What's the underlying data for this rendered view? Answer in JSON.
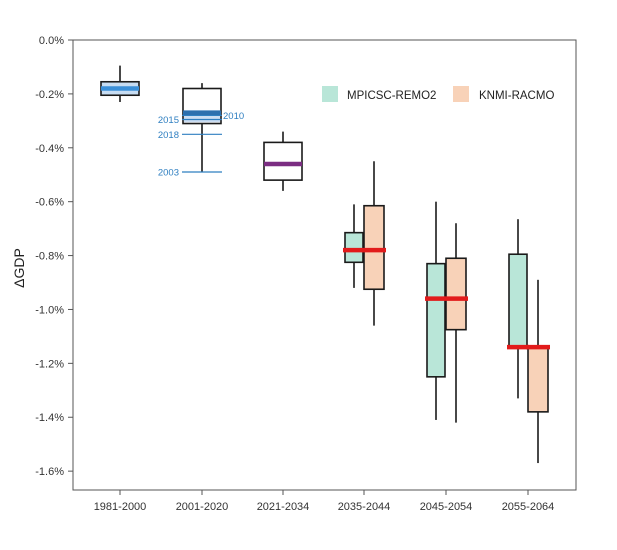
{
  "chart_data": {
    "type": "box",
    "title": "",
    "xlabel": "",
    "ylabel": "ΔGDP",
    "y_unit": "%",
    "ylim": [
      -1.67,
      0.0
    ],
    "yticks": [
      0.0,
      -0.2,
      -0.4,
      -0.6,
      -0.8,
      -1.0,
      -1.2,
      -1.4,
      -1.6
    ],
    "ytick_labels": [
      "0.0%",
      "-0.2%",
      "-0.4%",
      "-0.6%",
      "-0.8%",
      "-1.0%",
      "-1.2%",
      "-1.4%",
      "-1.6%"
    ],
    "categories": [
      "1981-2000",
      "2001-2020",
      "2021-2034",
      "2035-2044",
      "2045-2054",
      "2055-2064"
    ],
    "legend": {
      "position": "top-right",
      "entries": [
        {
          "name": "MPICSC-REMO2",
          "color": "#b9e6d8"
        },
        {
          "name": "KNMI-RACMO",
          "color": "#f8d2b8"
        }
      ]
    },
    "colors": {
      "outline": "#1a1a1a",
      "blue_median": "#3a8fd8",
      "blue_fill": "#a9c6ea",
      "purple_median": "#7b2d82",
      "red_median": "#e21b1b",
      "annotation": "#2f7fc1"
    },
    "boxes": [
      {
        "category": "1981-2000",
        "series": "historical",
        "fill": "#c6dcf2",
        "median_color": "#3a8fd8",
        "whisker_low": -0.23,
        "q1": -0.205,
        "median": -0.18,
        "q3": -0.155,
        "whisker_high": -0.095
      },
      {
        "category": "2001-2020",
        "series": "historical",
        "fill": "#ffffff",
        "median_color": "#2c6fae",
        "whisker_low": -0.49,
        "q1": -0.31,
        "median": -0.27,
        "q3": -0.18,
        "whisker_high": -0.16
      },
      {
        "category": "2021-2034",
        "series": "combined",
        "fill": "#ffffff",
        "median_color": "#7b2d82",
        "whisker_low": -0.56,
        "q1": -0.52,
        "median": -0.46,
        "q3": -0.38,
        "whisker_high": -0.34
      },
      {
        "category": "2035-2044",
        "series": "MPICSC-REMO2",
        "fill": "#b9e6d8",
        "median_color": "#e21b1b",
        "whisker_low": -0.92,
        "q1": -0.825,
        "median": -0.78,
        "q3": -0.715,
        "whisker_high": -0.61
      },
      {
        "category": "2035-2044",
        "series": "KNMI-RACMO",
        "fill": "#f8d2b8",
        "median_color": "#e21b1b",
        "whisker_low": -1.06,
        "q1": -0.925,
        "median": -0.78,
        "q3": -0.615,
        "whisker_high": -0.45
      },
      {
        "category": "2045-2054",
        "series": "MPICSC-REMO2",
        "fill": "#b9e6d8",
        "median_color": "#e21b1b",
        "whisker_low": -1.41,
        "q1": -1.25,
        "median": -0.96,
        "q3": -0.83,
        "whisker_high": -0.6
      },
      {
        "category": "2045-2054",
        "series": "KNMI-RACMO",
        "fill": "#f8d2b8",
        "median_color": "#e21b1b",
        "whisker_low": -1.42,
        "q1": -1.075,
        "median": -0.96,
        "q3": -0.81,
        "whisker_high": -0.68
      },
      {
        "category": "2055-2064",
        "series": "MPICSC-REMO2",
        "fill": "#b9e6d8",
        "median_color": "#e21b1b",
        "whisker_low": -1.33,
        "q1": -1.14,
        "median": -1.14,
        "q3": -0.795,
        "whisker_high": -0.665
      },
      {
        "category": "2055-2064",
        "series": "KNMI-RACMO",
        "fill": "#f8d2b8",
        "median_color": "#e21b1b",
        "whisker_low": -1.57,
        "q1": -1.38,
        "median": -1.14,
        "q3": -1.14,
        "whisker_high": -0.89
      }
    ],
    "annotations": [
      {
        "label": "2010",
        "value": -0.28
      },
      {
        "label": "2015",
        "value": -0.295
      },
      {
        "label": "2018",
        "value": -0.35
      },
      {
        "label": "2003",
        "value": -0.49
      }
    ],
    "grid": false
  }
}
